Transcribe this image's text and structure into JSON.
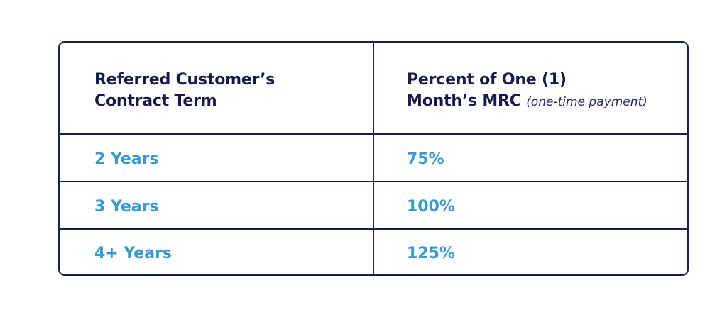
{
  "table": {
    "headers": {
      "term": {
        "line1": "Referred Customer’s",
        "line2": "Contract Term"
      },
      "percent": {
        "line1": "Percent of One (1)",
        "line2": "Month’s MRC",
        "note": "(one-time payment)"
      }
    },
    "rows": [
      {
        "term": "2 Years",
        "percent": "75%"
      },
      {
        "term": "3 Years",
        "percent": "100%"
      },
      {
        "term": "4+ Years",
        "percent": "125%"
      }
    ]
  },
  "colors": {
    "border": "#1b1f4b",
    "heading_text": "#16194a",
    "value_text": "#3799cd"
  }
}
